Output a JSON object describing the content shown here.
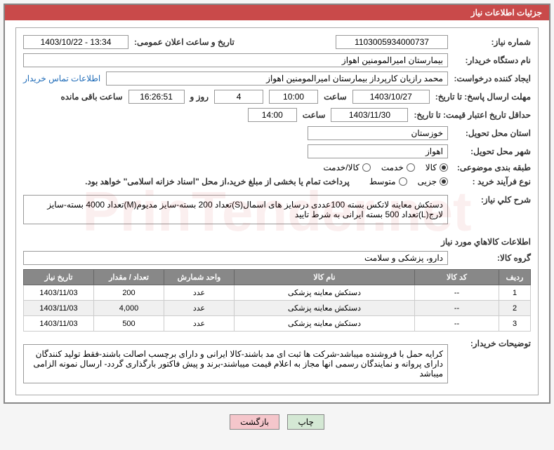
{
  "header": {
    "title": "جزئیات اطلاعات نیاز"
  },
  "fields": {
    "need_number_label": "شماره نیاز:",
    "need_number": "1103005934000737",
    "announce_date_label": "تاریخ و ساعت اعلان عمومی:",
    "announce_date": "1403/10/22 - 13:34",
    "buyer_org_label": "نام دستگاه خریدار:",
    "buyer_org": "بیمارستان امیرالمومنین اهواز",
    "requester_label": "ایجاد کننده درخواست:",
    "requester": "محمد رازیان کارپرداز بیمارستان امیرالمومنین اهواز",
    "contact_link": "اطلاعات تماس خریدار",
    "response_until_label": "مهلت ارسال پاسخ: تا تاریخ:",
    "response_until_date": "1403/10/27",
    "time_label": "ساعت",
    "response_until_time": "10:00",
    "days_and": "روز و",
    "days_remaining": "4",
    "countdown": "16:26:51",
    "remaining_label": "ساعت باقی مانده",
    "validity_label": "حداقل تاریخ اعتبار قیمت: تا تاریخ:",
    "validity_date": "1403/11/30",
    "validity_time": "14:00",
    "province_label": "استان محل تحویل:",
    "province": "خوزستان",
    "city_label": "شهر محل تحویل:",
    "city": "اهواز",
    "category_label": "طبقه بندی موضوعی:",
    "category_goods": "کالا",
    "category_service": "خدمت",
    "category_both": "کالا/خدمت",
    "purchase_type_label": "نوع فرآیند خرید :",
    "purchase_minor": "جزیی",
    "purchase_medium": "متوسط",
    "payment_note": "پرداخت تمام یا بخشی از مبلغ خرید،از محل \"اسناد خزانه اسلامی\" خواهد بود.",
    "overall_label": "شرح کلي نياز:",
    "overall_desc": "دستکش معاینه لاتکس بسته 100عددی درسایز های اسمال(S)تعداد 200 بسته-سایز مدیوم(M)تعداد 4000 بسته-سایز لارج(L)تعداد 500 بسته ایرانی به شرط تایید",
    "goods_section": "اطلاعات کالاهاي مورد نياز",
    "goods_group_label": "گروه کالا:",
    "goods_group": "دارو، پزشکی و سلامت",
    "buyer_notes_label": "توضیحات خریدار:",
    "buyer_notes": "کرایه حمل با فروشنده میباشد-شرکت ها ثبت ای مد باشند-کالا ایرانی و دارای برچسب اصالت باشند-فقط تولید کنندگان دارای پروانه و نمایندگان رسمی انها مجاز به اعلام قیمت میباشند-برند و پیش فاکتور بارگذاری گردد- ارسال نمونه الزامی میباشد"
  },
  "table": {
    "headers": {
      "row": "ردیف",
      "code": "کد کالا",
      "name": "نام کالا",
      "unit": "واحد شمارش",
      "qty": "تعداد / مقدار",
      "date": "تاریخ نیاز"
    },
    "rows": [
      {
        "n": "1",
        "code": "--",
        "name": "دستکش معاینه پزشکی",
        "unit": "عدد",
        "qty": "200",
        "date": "1403/11/03"
      },
      {
        "n": "2",
        "code": "--",
        "name": "دستکش معاینه پزشکی",
        "unit": "عدد",
        "qty": "4,000",
        "date": "1403/11/03"
      },
      {
        "n": "3",
        "code": "--",
        "name": "دستکش معاینه پزشکی",
        "unit": "عدد",
        "qty": "500",
        "date": "1403/11/03"
      }
    ]
  },
  "buttons": {
    "print": "چاپ",
    "back": "بازگشت"
  },
  "watermark": "PrinTender.net"
}
